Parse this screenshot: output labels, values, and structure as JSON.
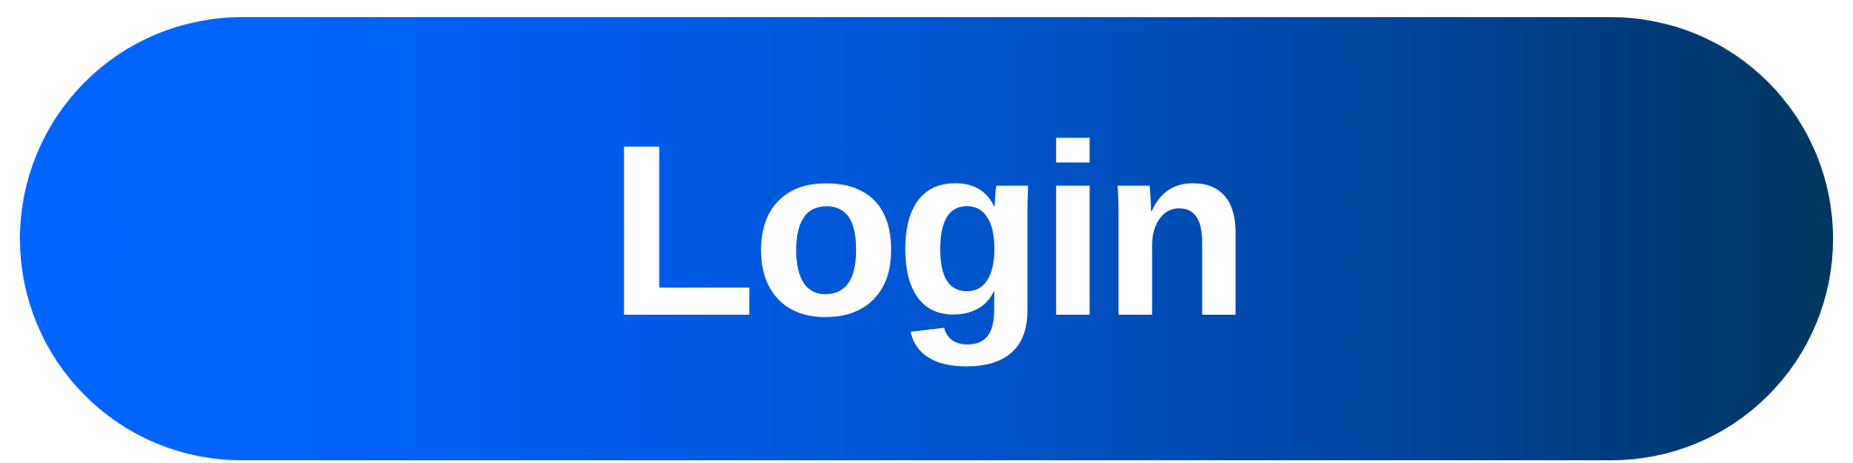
{
  "login_button": {
    "label": "Login"
  },
  "colors": {
    "gradient_start": "#0064ff",
    "gradient_end": "#00375f",
    "label_text": "#ffffff",
    "page_background": "#ffffff"
  }
}
